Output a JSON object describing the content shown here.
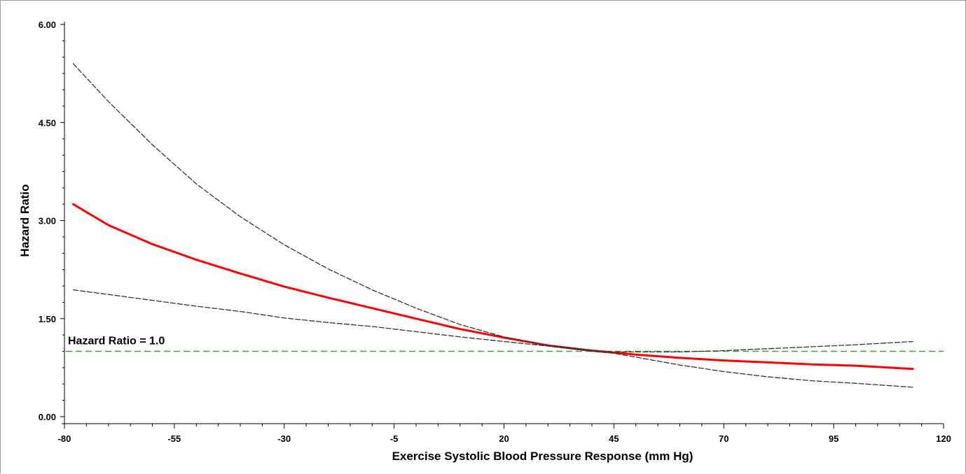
{
  "chart_data": {
    "type": "line",
    "xlabel": "Exercise Systolic Blood Pressure Response (mm Hg)",
    "ylabel": "Hazard Ratio",
    "xlim": [
      -80,
      120
    ],
    "ylim": [
      0,
      6
    ],
    "xticks": [
      -80,
      -55,
      -30,
      -5,
      20,
      45,
      70,
      95,
      120
    ],
    "xtick_labels": [
      "-80",
      "-55",
      "-30",
      "-5",
      "20",
      "45",
      "70",
      "95",
      "120"
    ],
    "yticks": [
      0,
      1.5,
      3,
      4.5,
      6
    ],
    "ytick_labels": [
      "0.00",
      "1.50",
      "3.00",
      "4.50",
      "6.00"
    ],
    "grid": false,
    "reference_line": {
      "y": 1.0,
      "label": "Hazard Ratio = 1.0",
      "color": "#3aa53a",
      "style": "dashed"
    },
    "series": [
      {
        "role": "estimate",
        "color": "#ff0000",
        "style": "solid",
        "x": [
          -78,
          -70,
          -60,
          -50,
          -40,
          -30,
          -20,
          -10,
          0,
          10,
          20,
          30,
          40,
          45,
          50,
          60,
          70,
          80,
          90,
          100,
          113
        ],
        "y": [
          3.25,
          2.93,
          2.64,
          2.4,
          2.19,
          1.99,
          1.82,
          1.66,
          1.5,
          1.34,
          1.21,
          1.09,
          1.01,
          0.98,
          0.95,
          0.9,
          0.86,
          0.83,
          0.8,
          0.78,
          0.73
        ]
      },
      {
        "role": "upper-ci",
        "color": "#333333",
        "style": "dashed",
        "x": [
          -78,
          -70,
          -60,
          -50,
          -40,
          -30,
          -20,
          -10,
          0,
          10,
          20,
          30,
          40,
          45,
          50,
          60,
          70,
          80,
          90,
          100,
          113
        ],
        "y": [
          5.4,
          4.82,
          4.16,
          3.56,
          3.06,
          2.63,
          2.26,
          1.94,
          1.66,
          1.41,
          1.22,
          1.09,
          1.02,
          0.99,
          0.99,
          0.99,
          1.01,
          1.04,
          1.07,
          1.1,
          1.15
        ]
      },
      {
        "role": "lower-ci",
        "color": "#333333",
        "style": "dashed",
        "x": [
          -78,
          -70,
          -60,
          -50,
          -40,
          -30,
          -20,
          -10,
          0,
          10,
          20,
          30,
          40,
          45,
          50,
          60,
          70,
          80,
          90,
          100,
          113
        ],
        "y": [
          1.94,
          1.87,
          1.78,
          1.69,
          1.61,
          1.51,
          1.44,
          1.38,
          1.3,
          1.22,
          1.15,
          1.08,
          1.0,
          0.97,
          0.91,
          0.79,
          0.69,
          0.61,
          0.55,
          0.51,
          0.45
        ]
      }
    ]
  }
}
